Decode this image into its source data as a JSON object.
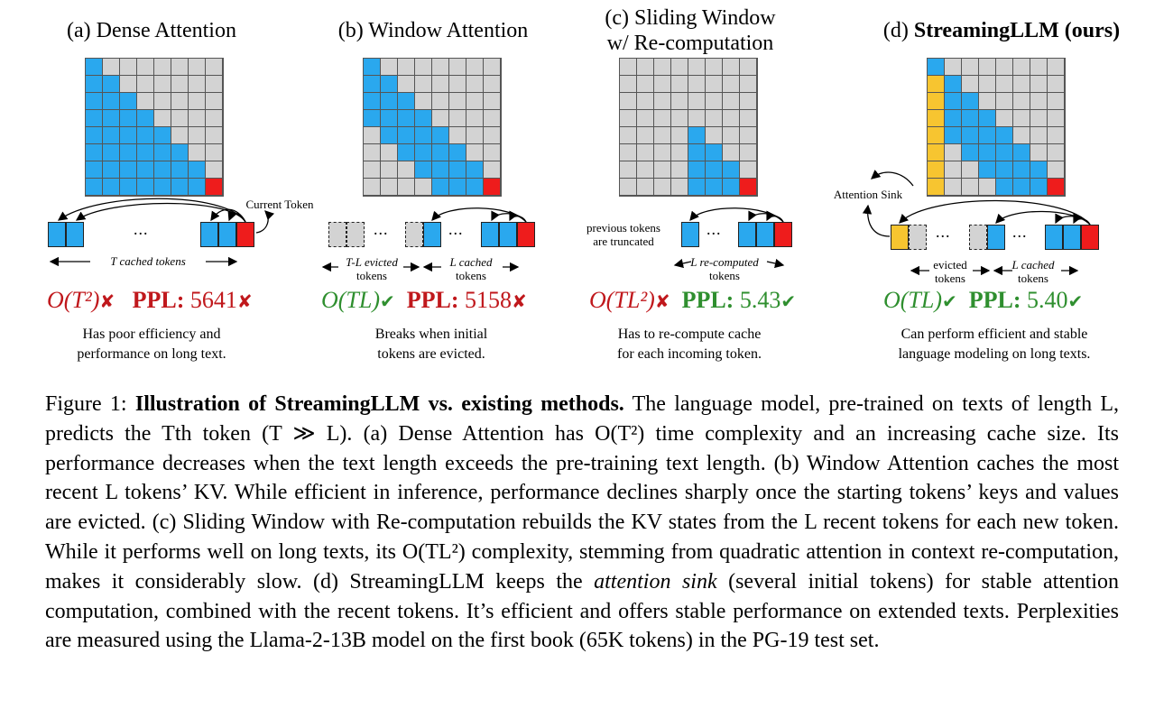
{
  "panels": [
    {
      "title": "(a) Dense Attention",
      "complexity": "O(T²)",
      "complexity_mark": "✘",
      "ppl_label": "PPL:",
      "ppl_value": "5641",
      "ppl_mark": "✘",
      "desc_line1": "Has poor efficiency and",
      "desc_line2": "performance on long text.",
      "label_current": "Current Token",
      "label_cached": "T cached tokens"
    },
    {
      "title": "(b) Window Attention",
      "complexity": "O(TL)",
      "complexity_mark": "✔",
      "ppl_label": "PPL:",
      "ppl_value": "5158",
      "ppl_mark": "✘",
      "desc_line1": "Breaks when initial",
      "desc_line2": "tokens are evicted.",
      "label_evicted_1": "T-L evicted",
      "label_evicted_2": "tokens",
      "label_cached_1": "L cached",
      "label_cached_2": "tokens"
    },
    {
      "title_line1": "(c) Sliding Window",
      "title_line2": "w/ Re-computation",
      "complexity": "O(TL²)",
      "complexity_mark": "✘",
      "ppl_label": "PPL:",
      "ppl_value": "5.43",
      "ppl_mark": "✔",
      "desc_line1": "Has to re-compute cache",
      "desc_line2": "for each incoming token.",
      "label_prev_1": "previous tokens",
      "label_prev_2": "are truncated",
      "label_recomp_1": "L re-computed",
      "label_recomp_2": "tokens"
    },
    {
      "title_prefix": "(d) ",
      "title_bold": "StreamingLLM (ours)",
      "complexity": "O(TL)",
      "complexity_mark": "✔",
      "ppl_label": "PPL:",
      "ppl_value": "5.40",
      "ppl_mark": "✔",
      "desc_line1": "Can perform efficient and stable",
      "desc_line2": "language modeling on long texts.",
      "label_sink": "Attention Sink",
      "label_evicted_1": "evicted",
      "label_evicted_2": "tokens",
      "label_cached_1": "L cached",
      "label_cached_2": "tokens"
    }
  ],
  "ellipsis": "...",
  "caption": {
    "prefix": "Figure 1: ",
    "bold": "Illustration of StreamingLLM vs. existing methods.",
    "body": " The language model, pre-trained on texts of length L, predicts the Tth token (T ≫ L). (a) Dense Attention has O(T²) time complexity and an increasing cache size. Its performance decreases when the text length exceeds the pre-training text length. (b) Window Attention caches the most recent L tokens’ KV. While efficient in inference, performance declines sharply once the starting tokens’ keys and values are evicted. (c) Sliding Window with Re-computation rebuilds the KV states from the L recent tokens for each new token. While it performs well on long texts, its O(TL²) complexity, stemming from quadratic attention in context re-computation, makes it considerably slow. (d) StreamingLLM keeps the ",
    "italic": "attention sink",
    "tail": " (several initial tokens) for stable attention computation, combined with the recent tokens. It’s efficient and offers stable performance on extended texts. Perplexities are measured using the Llama-2-13B model on the first book (65K tokens) in the PG-19 test set."
  },
  "colors": {
    "blue": "#2aa8ee",
    "red": "#ee1c1c",
    "yellow": "#f7c530",
    "gray": "#d3d3d3",
    "bad": "#c0181c",
    "good": "#2f8f2f"
  }
}
